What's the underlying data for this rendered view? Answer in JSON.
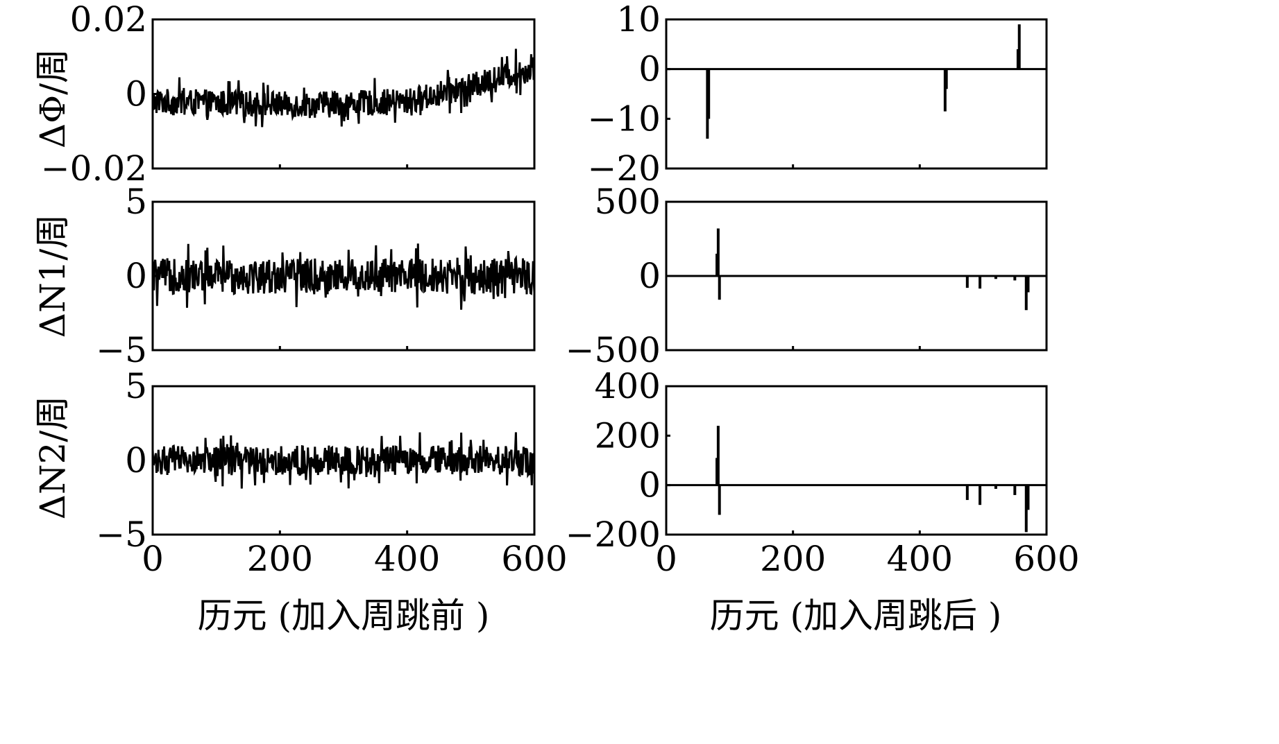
{
  "chart_data": [
    {
      "id": "dphi_before",
      "type": "line",
      "ylabel": "ΔΦ/周",
      "xlim": [
        0,
        600
      ],
      "ylim": [
        -0.02,
        0.02
      ],
      "yticks": [
        0.02,
        0,
        -0.02
      ],
      "ytick_labels": [
        "0.02",
        "0",
        "−0.02"
      ],
      "series": [
        {
          "noise_amplitude": 0.0035,
          "trend": [
            [
              0,
              -0.002
            ],
            [
              250,
              -0.003
            ],
            [
              400,
              -0.002
            ],
            [
              500,
              0.002
            ],
            [
              600,
              0.007
            ]
          ]
        }
      ]
    },
    {
      "id": "dphi_after",
      "type": "line",
      "ylim": [
        -20,
        10
      ],
      "yticks": [
        10,
        0,
        -10,
        -20
      ],
      "ytick_labels": [
        "10",
        "0",
        "−10",
        "−20"
      ],
      "series": [
        {
          "baseline": 0,
          "spikes": [
            [
              65,
              -14
            ],
            [
              67,
              -10
            ],
            [
              440,
              -8.5
            ],
            [
              442,
              -4
            ],
            [
              555,
              4
            ],
            [
              557,
              9
            ]
          ]
        }
      ]
    },
    {
      "id": "dn1_before",
      "type": "line",
      "ylabel": "ΔN1/周",
      "xlim": [
        0,
        600
      ],
      "ylim": [
        -5,
        5
      ],
      "yticks": [
        5,
        0,
        -5
      ],
      "ytick_labels": [
        "5",
        "0",
        "−5"
      ],
      "series": [
        {
          "noise_amplitude": 1.2,
          "trend": [
            [
              0,
              0
            ],
            [
              600,
              0
            ]
          ]
        }
      ]
    },
    {
      "id": "dn1_after",
      "type": "line",
      "ylim": [
        -500,
        500
      ],
      "yticks": [
        500,
        0,
        -500
      ],
      "ytick_labels": [
        "500",
        "0",
        "−500"
      ],
      "series": [
        {
          "baseline": 0,
          "spikes": [
            [
              80,
              150
            ],
            [
              82,
              320
            ],
            [
              84,
              -160
            ],
            [
              475,
              -80
            ],
            [
              495,
              -85
            ],
            [
              520,
              -20
            ],
            [
              550,
              -30
            ],
            [
              568,
              -230
            ],
            [
              571,
              -110
            ]
          ]
        }
      ]
    },
    {
      "id": "dn2_before",
      "type": "line",
      "ylabel": "ΔN2/周",
      "xlim": [
        0,
        600
      ],
      "ylim": [
        -5,
        5
      ],
      "yticks": [
        5,
        0,
        -5
      ],
      "ytick_labels": [
        "5",
        "0",
        "−5"
      ],
      "series": [
        {
          "noise_amplitude": 1.0,
          "trend": [
            [
              0,
              0
            ],
            [
              600,
              0
            ]
          ]
        }
      ]
    },
    {
      "id": "dn2_after",
      "type": "line",
      "ylim": [
        -200,
        400
      ],
      "yticks": [
        400,
        200,
        0,
        -200
      ],
      "ytick_labels": [
        "400",
        "200",
        "0",
        "−200"
      ],
      "series": [
        {
          "baseline": 0,
          "spikes": [
            [
              80,
              110
            ],
            [
              82,
              240
            ],
            [
              84,
              -120
            ],
            [
              475,
              -60
            ],
            [
              495,
              -80
            ],
            [
              520,
              -15
            ],
            [
              550,
              -40
            ],
            [
              568,
              -190
            ],
            [
              571,
              -100
            ]
          ]
        }
      ]
    }
  ],
  "x_axis": {
    "ticks": [
      0,
      200,
      400,
      600
    ],
    "tick_labels": [
      "0",
      "200",
      "400",
      "600"
    ],
    "left_label": "历元 (加入周跳前 )",
    "right_label": "历元 (加入周跳后 )"
  }
}
